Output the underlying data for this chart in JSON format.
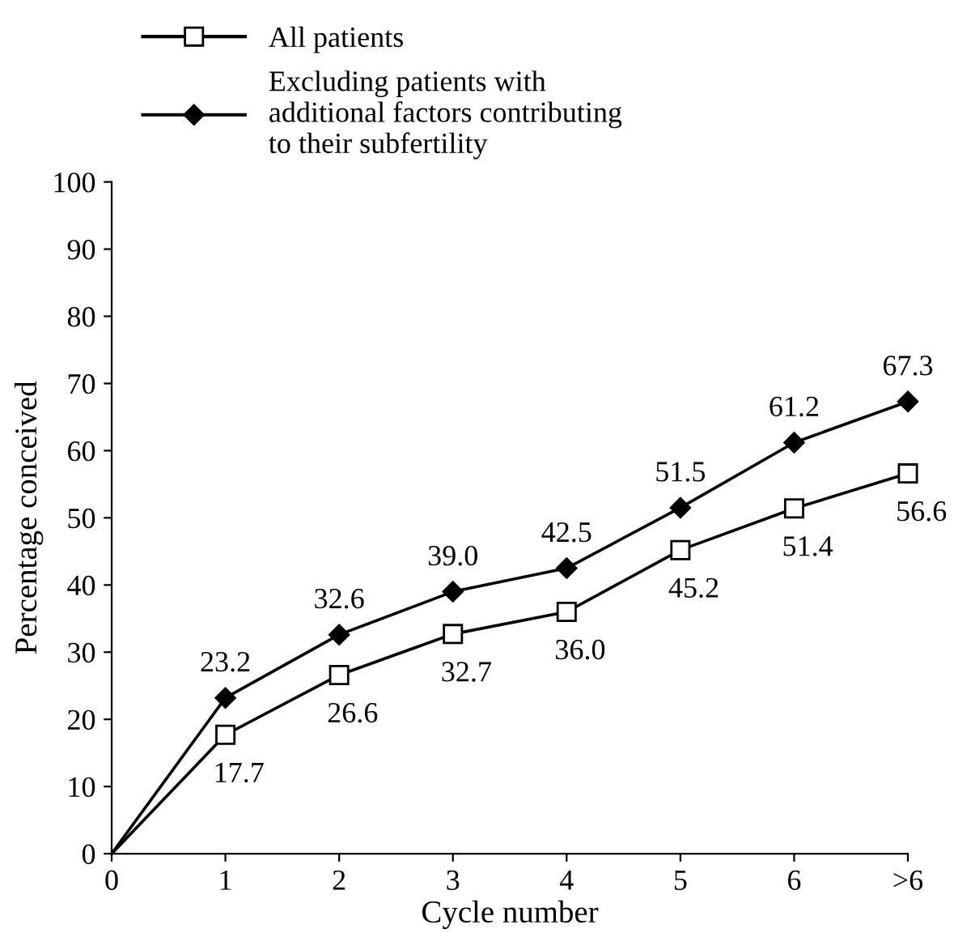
{
  "chart_data": {
    "type": "line",
    "xlabel": "Cycle number",
    "ylabel": "Percentage conceived",
    "categories": [
      "0",
      "1",
      "2",
      "3",
      "4",
      "5",
      "6",
      ">6"
    ],
    "series": [
      {
        "name": "All patients",
        "color": "#000000",
        "marker": "square",
        "values": [
          0,
          17.7,
          26.6,
          32.7,
          36.0,
          45.2,
          51.4,
          56.6
        ],
        "value_labels": [
          null,
          "17.7",
          "26.6",
          "32.7",
          "36.0",
          "45.2",
          "51.4",
          "56.6"
        ]
      },
      {
        "name": "Excluding patients with\nadditional factors contributing\nto their subfertility",
        "color": "#000000",
        "marker": "diamond",
        "values": [
          0,
          23.2,
          32.6,
          39.0,
          42.5,
          51.5,
          61.2,
          67.3
        ],
        "value_labels": [
          null,
          "23.2",
          "32.6",
          "39.0",
          "42.5",
          "51.5",
          "61.2",
          "67.3"
        ]
      }
    ],
    "ylim": [
      0,
      100
    ],
    "yticks": [
      0,
      10,
      20,
      30,
      40,
      50,
      60,
      70,
      80,
      90,
      100
    ],
    "grid": false,
    "legend": "top left",
    "line_style": "solid"
  }
}
